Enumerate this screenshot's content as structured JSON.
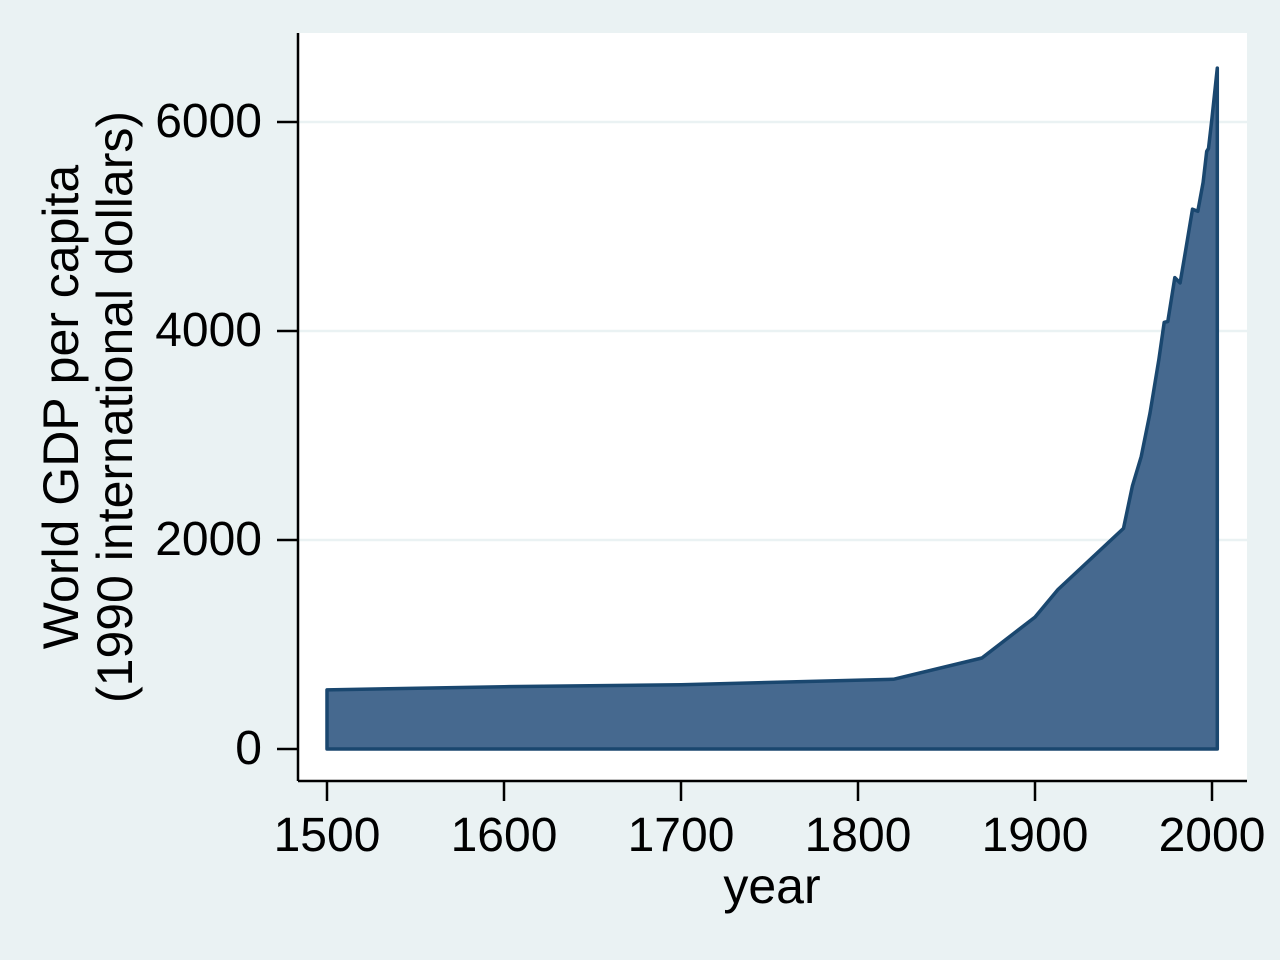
{
  "figure": {
    "background_color": "#eaf2f3",
    "plot_background_color": "#ffffff",
    "grid_color": "#eaf2f3",
    "axis_color": "#000000",
    "text_color": "#000000",
    "area_fill_color": "#46698f",
    "area_stroke_color": "#1a476f"
  },
  "chart_data": {
    "type": "area",
    "title": "",
    "xlabel": "year",
    "ylabel": "World GDP per capita (1990 international dollars)",
    "ylabel_lines": [
      "World GDP per capita",
      "(1990 international dollars)"
    ],
    "x_ticks": [
      1500,
      1600,
      1700,
      1800,
      1900,
      2000
    ],
    "y_ticks": [
      0,
      2000,
      4000,
      6000
    ],
    "xlim": [
      1484,
      2020
    ],
    "ylim": [
      -310,
      6850
    ],
    "grid": "horizontal gridlines at y = 2000, 4000, 6000",
    "legend": "none",
    "baseline": 0,
    "series": [
      {
        "name": "World GDP per capita (1990 international dollars)",
        "points": [
          [
            1500,
            566
          ],
          [
            1600,
            596
          ],
          [
            1700,
            615
          ],
          [
            1820,
            667
          ],
          [
            1870,
            871
          ],
          [
            1900,
            1262
          ],
          [
            1913,
            1526
          ],
          [
            1950,
            2111
          ],
          [
            1955,
            2517
          ],
          [
            1960,
            2798
          ],
          [
            1965,
            3214
          ],
          [
            1970,
            3729
          ],
          [
            1973,
            4083
          ],
          [
            1975,
            4091
          ],
          [
            1979,
            4511
          ],
          [
            1982,
            4460
          ],
          [
            1985,
            4764
          ],
          [
            1989,
            5166
          ],
          [
            1992,
            5145
          ],
          [
            1995,
            5421
          ],
          [
            1997,
            5720
          ],
          [
            1998,
            5746
          ],
          [
            2000,
            6038
          ],
          [
            2003,
            6516
          ]
        ]
      }
    ]
  }
}
